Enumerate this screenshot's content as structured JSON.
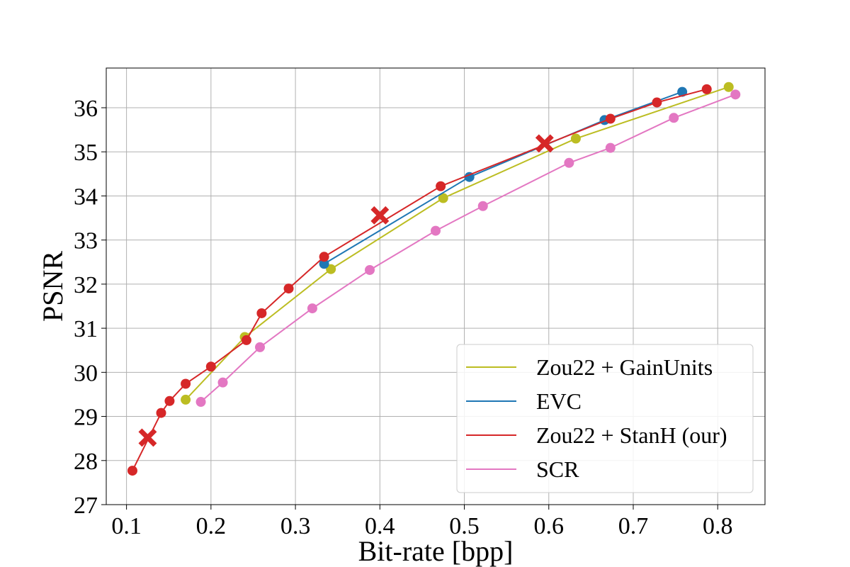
{
  "chart_data": {
    "type": "line",
    "title": "",
    "xlabel": "Bit-rate [bpp]",
    "ylabel": "PSNR",
    "xlim": [
      0.076,
      0.856
    ],
    "ylim": [
      27,
      36.9
    ],
    "xticks": [
      0.1,
      0.2,
      0.3,
      0.4,
      0.5,
      0.6,
      0.7,
      0.8
    ],
    "yticks": [
      27,
      28,
      29,
      30,
      31,
      32,
      33,
      34,
      35,
      36
    ],
    "grid": true,
    "legend_position": "bottom-right",
    "series": [
      {
        "name": "Zou22 + GainUnits",
        "color": "#bcbd22",
        "x": [
          0.17,
          0.24,
          0.342,
          0.475,
          0.632,
          0.813
        ],
        "y": [
          29.38,
          30.8,
          32.34,
          33.95,
          35.3,
          36.47
        ]
      },
      {
        "name": "EVC",
        "color": "#1f77b4",
        "x": [
          0.334,
          0.506,
          0.666,
          0.758
        ],
        "y": [
          32.46,
          34.43,
          35.72,
          36.36
        ]
      },
      {
        "name": "Zou22 + StanH (our)",
        "color": "#d62728",
        "x": [
          0.107,
          0.141,
          0.151,
          0.17,
          0.2,
          0.242,
          0.26,
          0.292,
          0.334,
          0.472,
          0.673,
          0.728,
          0.787
        ],
        "y": [
          27.77,
          29.08,
          29.35,
          29.74,
          30.13,
          30.73,
          31.34,
          31.9,
          32.62,
          34.22,
          35.75,
          36.12,
          36.42
        ]
      },
      {
        "name": "SCR",
        "color": "#e377c2",
        "x": [
          0.188,
          0.214,
          0.258,
          0.32,
          0.388,
          0.466,
          0.522,
          0.624,
          0.673,
          0.748,
          0.821
        ],
        "y": [
          29.33,
          29.77,
          30.57,
          31.45,
          32.32,
          33.21,
          33.77,
          34.75,
          35.09,
          35.77,
          36.3
        ]
      }
    ],
    "highlight_markers": {
      "series": "Zou22 + StanH (our)",
      "color": "#d62728",
      "marker": "x",
      "x": [
        0.125,
        0.4,
        0.595
      ],
      "y": [
        28.52,
        33.56,
        35.19
      ]
    }
  }
}
